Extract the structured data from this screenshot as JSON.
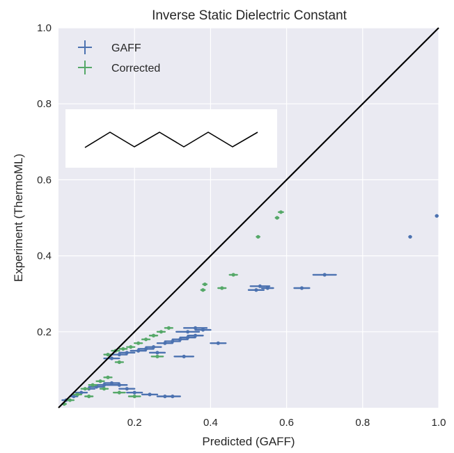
{
  "chart_data": {
    "type": "scatter",
    "title": "Inverse Static Dielectric Constant",
    "xlabel": "Predicted (GAFF)",
    "ylabel": "Experiment (ThermoML)",
    "xlim": [
      0.0,
      1.0
    ],
    "ylim": [
      0.0,
      1.0
    ],
    "xticks": [
      0.2,
      0.4,
      0.6,
      0.8,
      1.0
    ],
    "yticks": [
      0.2,
      0.4,
      0.6,
      0.8,
      1.0
    ],
    "grid": true,
    "legend_position": "top-left",
    "background_color": "#eaeaf2",
    "grid_color": "#ffffff",
    "reference_line": {
      "from": [
        0.0,
        0.0
      ],
      "to": [
        1.0,
        1.0
      ],
      "color": "#000000"
    },
    "inset": {
      "description_shape": "zigzag"
    },
    "series": [
      {
        "name": "GAFF",
        "color": "#4c72b0",
        "points": [
          {
            "x": 0.02,
            "y": 0.02,
            "xerr": 0.01
          },
          {
            "x": 0.04,
            "y": 0.03,
            "xerr": 0.01
          },
          {
            "x": 0.06,
            "y": 0.04,
            "xerr": 0.015
          },
          {
            "x": 0.08,
            "y": 0.05,
            "xerr": 0.015
          },
          {
            "x": 0.1,
            "y": 0.055,
            "xerr": 0.02
          },
          {
            "x": 0.12,
            "y": 0.06,
            "xerr": 0.02
          },
          {
            "x": 0.14,
            "y": 0.065,
            "xerr": 0.02
          },
          {
            "x": 0.16,
            "y": 0.06,
            "xerr": 0.02
          },
          {
            "x": 0.18,
            "y": 0.05,
            "xerr": 0.02
          },
          {
            "x": 0.2,
            "y": 0.04,
            "xerr": 0.02
          },
          {
            "x": 0.24,
            "y": 0.035,
            "xerr": 0.02
          },
          {
            "x": 0.28,
            "y": 0.03,
            "xerr": 0.02
          },
          {
            "x": 0.3,
            "y": 0.03,
            "xerr": 0.02
          },
          {
            "x": 0.14,
            "y": 0.13,
            "xerr": 0.02
          },
          {
            "x": 0.16,
            "y": 0.14,
            "xerr": 0.02
          },
          {
            "x": 0.18,
            "y": 0.145,
            "xerr": 0.02
          },
          {
            "x": 0.21,
            "y": 0.15,
            "xerr": 0.02
          },
          {
            "x": 0.23,
            "y": 0.155,
            "xerr": 0.02
          },
          {
            "x": 0.25,
            "y": 0.16,
            "xerr": 0.02
          },
          {
            "x": 0.28,
            "y": 0.17,
            "xerr": 0.02
          },
          {
            "x": 0.3,
            "y": 0.175,
            "xerr": 0.02
          },
          {
            "x": 0.32,
            "y": 0.18,
            "xerr": 0.02
          },
          {
            "x": 0.34,
            "y": 0.185,
            "xerr": 0.02
          },
          {
            "x": 0.36,
            "y": 0.19,
            "xerr": 0.02
          },
          {
            "x": 0.34,
            "y": 0.2,
            "xerr": 0.03
          },
          {
            "x": 0.36,
            "y": 0.21,
            "xerr": 0.03
          },
          {
            "x": 0.38,
            "y": 0.205,
            "xerr": 0.02
          },
          {
            "x": 0.26,
            "y": 0.145,
            "xerr": 0.02
          },
          {
            "x": 0.33,
            "y": 0.135,
            "xerr": 0.025
          },
          {
            "x": 0.42,
            "y": 0.17,
            "xerr": 0.02
          },
          {
            "x": 0.52,
            "y": 0.31,
            "xerr": 0.02
          },
          {
            "x": 0.53,
            "y": 0.32,
            "xerr": 0.025
          },
          {
            "x": 0.55,
            "y": 0.315,
            "xerr": 0.015
          },
          {
            "x": 0.64,
            "y": 0.315,
            "xerr": 0.02
          },
          {
            "x": 0.7,
            "y": 0.35,
            "xerr": 0.03
          },
          {
            "x": 0.925,
            "y": 0.45,
            "xerr": 0.003
          },
          {
            "x": 0.995,
            "y": 0.505,
            "xerr": 0.003
          }
        ]
      },
      {
        "name": "Corrected",
        "color": "#55a868",
        "points": [
          {
            "x": 0.015,
            "y": 0.01,
            "xerr": 0.005
          },
          {
            "x": 0.03,
            "y": 0.02,
            "xerr": 0.01
          },
          {
            "x": 0.05,
            "y": 0.035,
            "xerr": 0.01
          },
          {
            "x": 0.07,
            "y": 0.05,
            "xerr": 0.01
          },
          {
            "x": 0.09,
            "y": 0.06,
            "xerr": 0.01
          },
          {
            "x": 0.11,
            "y": 0.07,
            "xerr": 0.01
          },
          {
            "x": 0.13,
            "y": 0.08,
            "xerr": 0.01
          },
          {
            "x": 0.16,
            "y": 0.04,
            "xerr": 0.015
          },
          {
            "x": 0.2,
            "y": 0.03,
            "xerr": 0.015
          },
          {
            "x": 0.08,
            "y": 0.03,
            "xerr": 0.01
          },
          {
            "x": 0.12,
            "y": 0.05,
            "xerr": 0.01
          },
          {
            "x": 0.13,
            "y": 0.14,
            "xerr": 0.01
          },
          {
            "x": 0.15,
            "y": 0.15,
            "xerr": 0.01
          },
          {
            "x": 0.17,
            "y": 0.155,
            "xerr": 0.01
          },
          {
            "x": 0.19,
            "y": 0.16,
            "xerr": 0.01
          },
          {
            "x": 0.21,
            "y": 0.17,
            "xerr": 0.01
          },
          {
            "x": 0.23,
            "y": 0.18,
            "xerr": 0.01
          },
          {
            "x": 0.25,
            "y": 0.19,
            "xerr": 0.01
          },
          {
            "x": 0.27,
            "y": 0.2,
            "xerr": 0.01
          },
          {
            "x": 0.29,
            "y": 0.21,
            "xerr": 0.01
          },
          {
            "x": 0.26,
            "y": 0.135,
            "xerr": 0.015
          },
          {
            "x": 0.16,
            "y": 0.12,
            "xerr": 0.01
          },
          {
            "x": 0.38,
            "y": 0.31,
            "xerr": 0.005
          },
          {
            "x": 0.385,
            "y": 0.325,
            "xerr": 0.005
          },
          {
            "x": 0.43,
            "y": 0.315,
            "xerr": 0.01
          },
          {
            "x": 0.46,
            "y": 0.35,
            "xerr": 0.01
          },
          {
            "x": 0.525,
            "y": 0.45,
            "xerr": 0.004
          },
          {
            "x": 0.575,
            "y": 0.5,
            "xerr": 0.004
          },
          {
            "x": 0.585,
            "y": 0.515,
            "xerr": 0.006
          }
        ]
      }
    ]
  }
}
